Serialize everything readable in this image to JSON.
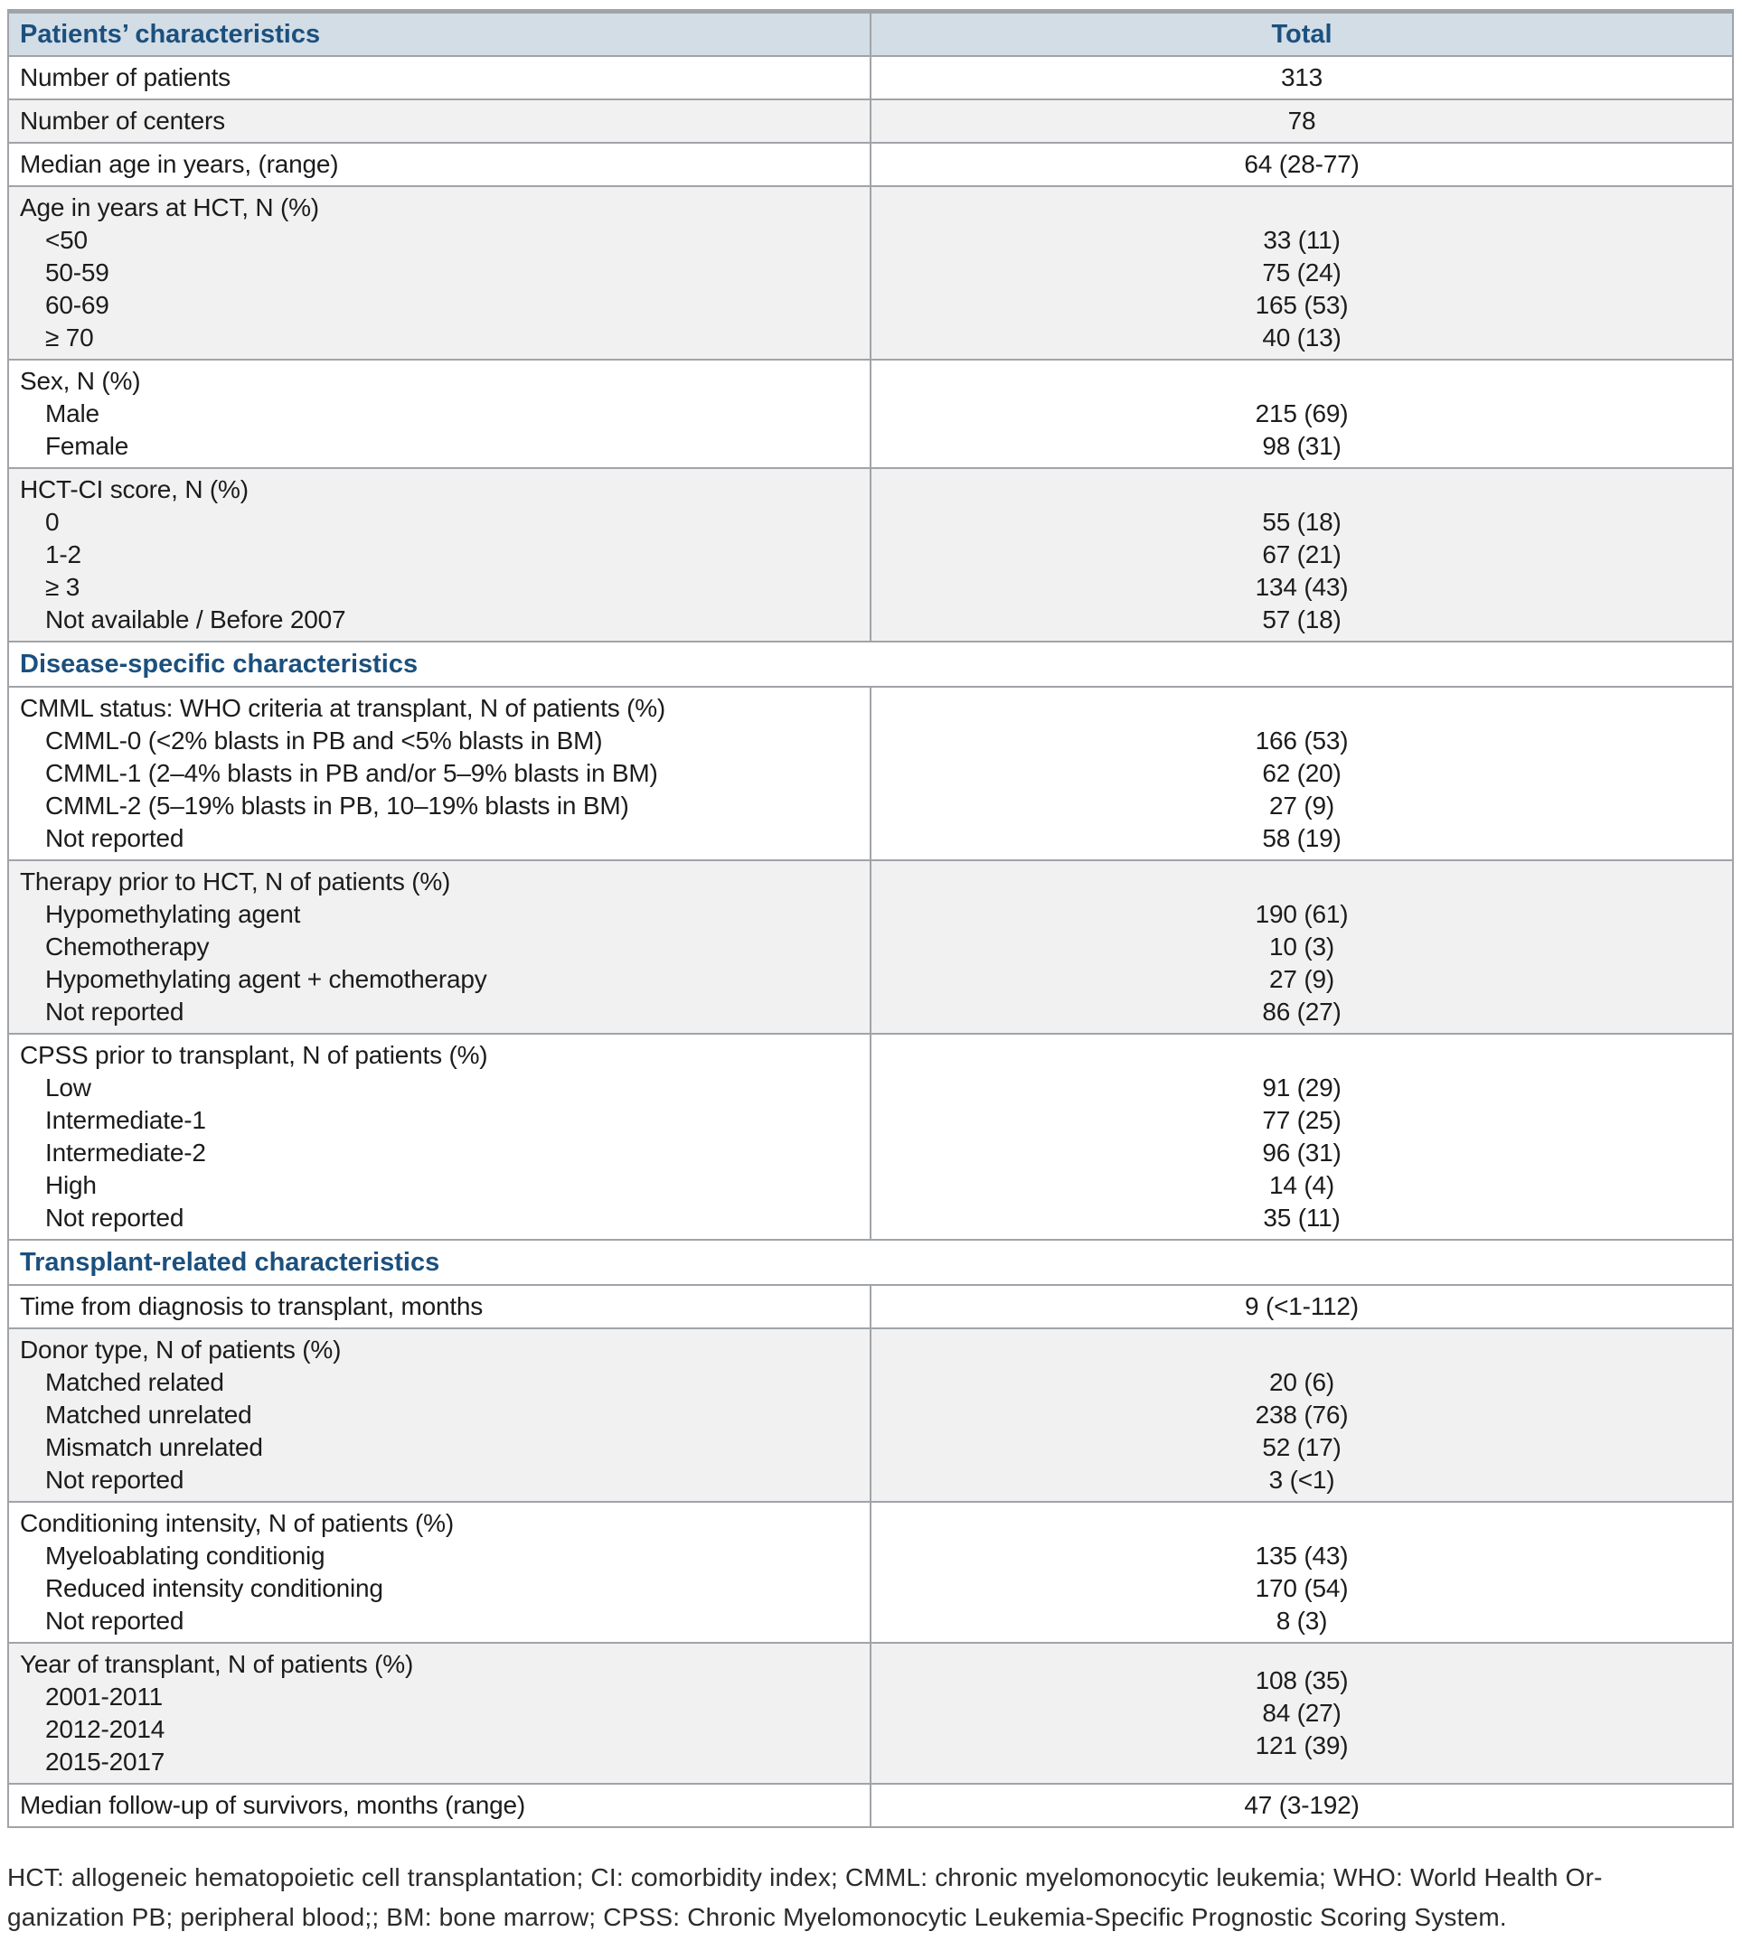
{
  "colors": {
    "accent": "#1b507e",
    "header_bg": "#d3dde6",
    "row_alt": "#f1f1f2",
    "border": "#a0a4a8",
    "text": "#1c1c1c"
  },
  "table": {
    "header": {
      "col1": "Patients’ characteristics",
      "col2": "Total"
    },
    "rows": [
      {
        "type": "single",
        "shade": "white",
        "label": "Number of patients",
        "value": "313"
      },
      {
        "type": "single",
        "shade": "gray",
        "label": "Number of centers",
        "value": "78"
      },
      {
        "type": "single",
        "shade": "white",
        "label": "Median age in years, (range)",
        "value": "64 (28-77)"
      },
      {
        "type": "group",
        "shade": "gray",
        "label": "Age in years at HCT, N (%)",
        "items": [
          [
            "<50",
            "33 (11)"
          ],
          [
            "50-59",
            "75 (24)"
          ],
          [
            "60-69",
            "165 (53)"
          ],
          [
            "≥ 70",
            "40 (13)"
          ]
        ]
      },
      {
        "type": "group",
        "shade": "white",
        "label": "Sex, N (%)",
        "items": [
          [
            "Male",
            "215 (69)"
          ],
          [
            "Female",
            "98 (31)"
          ]
        ]
      },
      {
        "type": "group",
        "shade": "gray",
        "label": "HCT-CI score, N (%)",
        "items": [
          [
            "0",
            "55 (18)"
          ],
          [
            "1-2",
            "67 (21)"
          ],
          [
            "≥ 3",
            "134 (43)"
          ],
          [
            "Not available / Before 2007",
            "57 (18)"
          ]
        ]
      },
      {
        "type": "section",
        "shade": "white",
        "label": "Disease-specific characteristics"
      },
      {
        "type": "group",
        "shade": "white",
        "label": "CMML status: WHO criteria at transplant, N of patients (%)",
        "items": [
          [
            "CMML-0 (<2% blasts in PB and <5% blasts in BM)",
            "166 (53)"
          ],
          [
            "CMML-1 (2–4% blasts in PB and/or 5–9% blasts in BM)",
            "62 (20)"
          ],
          [
            "CMML-2 (5–19% blasts in PB, 10–19% blasts in BM)",
            "27 (9)"
          ],
          [
            "Not reported",
            "58 (19)"
          ]
        ]
      },
      {
        "type": "group",
        "shade": "gray",
        "label": "Therapy prior to HCT, N of patients (%)",
        "items": [
          [
            "Hypomethylating agent",
            "190 (61)"
          ],
          [
            "Chemotherapy",
            "10 (3)"
          ],
          [
            "Hypomethylating agent + chemotherapy",
            "27 (9)"
          ],
          [
            "Not reported",
            "86 (27)"
          ]
        ]
      },
      {
        "type": "group",
        "shade": "white",
        "label": "CPSS prior to transplant, N of patients (%)",
        "items": [
          [
            "Low",
            "91 (29)"
          ],
          [
            "Intermediate-1",
            "77 (25)"
          ],
          [
            "Intermediate-2",
            "96 (31)"
          ],
          [
            "High",
            "14 (4)"
          ],
          [
            "Not reported",
            "35 (11)"
          ]
        ]
      },
      {
        "type": "section",
        "shade": "white",
        "label": "Transplant-related characteristics"
      },
      {
        "type": "single",
        "shade": "white",
        "label": "Time from diagnosis to transplant, months",
        "value": "9 (<1-112)"
      },
      {
        "type": "group",
        "shade": "gray",
        "label": "Donor type, N of patients (%)",
        "items": [
          [
            "Matched related",
            "20 (6)"
          ],
          [
            "Matched unrelated",
            "238 (76)"
          ],
          [
            "Mismatch unrelated",
            "52 (17)"
          ],
          [
            "Not reported",
            "3 (<1)"
          ]
        ]
      },
      {
        "type": "group",
        "shade": "white",
        "label": "Conditioning intensity, N of patients (%)",
        "items": [
          [
            "Myeloablating conditionig",
            "135 (43)"
          ],
          [
            "Reduced intensity conditioning",
            "170 (54)"
          ],
          [
            "Not reported",
            "8 (3)"
          ]
        ]
      },
      {
        "type": "group-centered",
        "shade": "gray",
        "label": "Year of transplant, N of patients (%)",
        "sub_labels": [
          "2001-2011",
          "2012-2014",
          "2015-2017"
        ],
        "values": [
          "108 (35)",
          "84 (27)",
          "121 (39)"
        ]
      },
      {
        "type": "single",
        "shade": "white",
        "label": "Median follow-up of survivors, months (range)",
        "value": "47 (3-192)"
      }
    ]
  },
  "footnote": {
    "lines": [
      "HCT: allogeneic hematopoietic cell transplantation; CI: comorbidity index; CMML: chronic myelomonocytic leukemia; WHO: World Health Or-",
      "ganization PB; peripheral blood;; BM: bone marrow; CPSS: Chronic Myelomonocytic Leukemia-Specific Prognostic Scoring System."
    ]
  }
}
